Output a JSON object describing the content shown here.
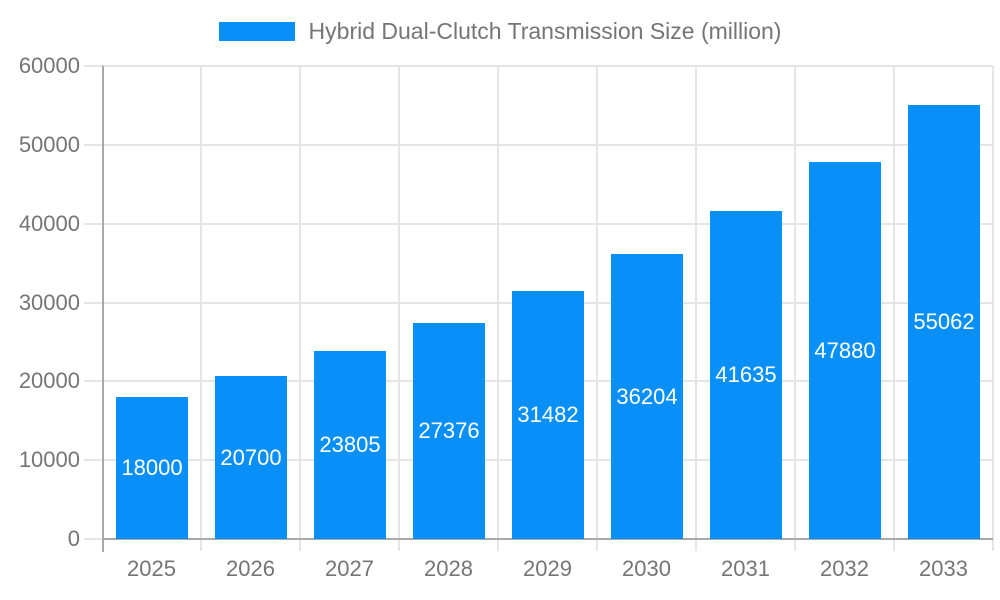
{
  "legend": {
    "label": "Hybrid Dual-Clutch Transmission Size (million)"
  },
  "colors": {
    "bar": "#0990f8",
    "grid": "#e5e5e5",
    "axis": "#a8a8a8",
    "tick": "#cfcfcf",
    "axis_text": "#757575",
    "value_text": "#ffffff",
    "background": "#ffffff"
  },
  "chart_data": {
    "type": "bar",
    "title": "Hybrid Dual-Clutch Transmission Size (million)",
    "categories": [
      "2025",
      "2026",
      "2027",
      "2028",
      "2029",
      "2030",
      "2031",
      "2032",
      "2033"
    ],
    "values": [
      18000,
      20700,
      23805,
      27376,
      31482,
      36204,
      41635,
      47880,
      55062
    ],
    "series_name": "Hybrid Dual-Clutch Transmission Size (million)",
    "xlabel": "",
    "ylabel": "",
    "ylim": [
      0,
      60000
    ],
    "ytick_step": 10000,
    "ytick_labels": [
      "0",
      "10000",
      "20000",
      "30000",
      "40000",
      "50000",
      "60000"
    ],
    "grid": "both",
    "legend_position": "top-center",
    "value_labels": "inside-center-white"
  }
}
